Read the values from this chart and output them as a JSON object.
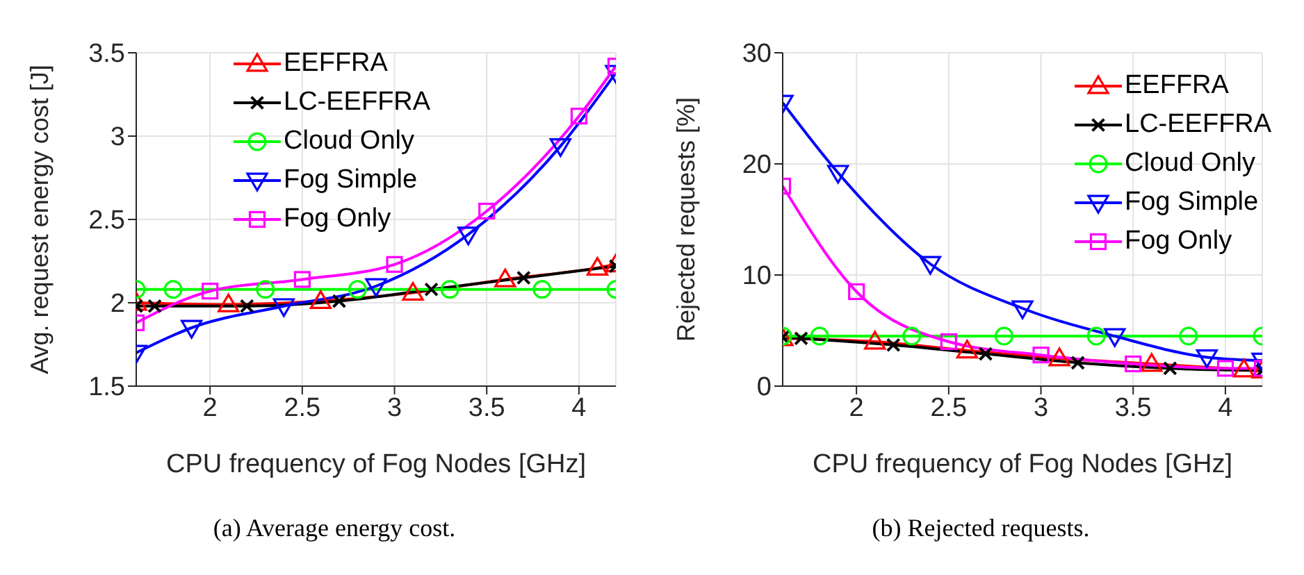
{
  "chart_data": [
    {
      "type": "line",
      "xlabel": "CPU frequency of Fog Nodes [GHz]",
      "ylabel": "Avg. request energy cost [J]",
      "xlim": [
        1.6,
        4.2
      ],
      "xticks": [
        2,
        2.5,
        3,
        3.5,
        4
      ],
      "ylim": [
        1.5,
        3.5
      ],
      "yticks": [
        1.5,
        2,
        2.5,
        3,
        3.5
      ],
      "grid": true,
      "legend": "top",
      "line_style": "solid",
      "annotations": [
        "(a) Average energy cost."
      ],
      "series": [
        {
          "name": "EEFFRA",
          "color": "#ff0000",
          "marker": "triangle",
          "x": [
            1.6,
            2.1,
            2.6,
            3.1,
            3.6,
            4.1,
            4.2
          ],
          "values": [
            2.0,
            1.99,
            2.01,
            2.06,
            2.14,
            2.21,
            2.23
          ]
        },
        {
          "name": "LC-EEFFRA",
          "color": "#000000",
          "marker": "cross",
          "x": [
            1.6,
            1.7,
            2.2,
            2.7,
            3.2,
            3.7,
            4.2
          ],
          "values": [
            1.98,
            1.98,
            1.98,
            2.01,
            2.08,
            2.15,
            2.22
          ]
        },
        {
          "name": "Cloud Only",
          "color": "#00ff00",
          "marker": "circle",
          "x": [
            1.6,
            1.8,
            2.3,
            2.8,
            3.3,
            3.8,
            4.2
          ],
          "values": [
            2.08,
            2.08,
            2.08,
            2.08,
            2.08,
            2.08,
            2.08
          ]
        },
        {
          "name": "Fog Simple",
          "color": "#0000ff",
          "marker": "triangle-down",
          "x": [
            1.6,
            1.9,
            2.4,
            2.9,
            3.4,
            3.9,
            4.2
          ],
          "values": [
            1.7,
            1.85,
            1.98,
            2.1,
            2.41,
            2.94,
            3.38
          ]
        },
        {
          "name": "Fog Only",
          "color": "#ff00ff",
          "marker": "square",
          "x": [
            1.6,
            2.0,
            2.5,
            3.0,
            3.5,
            4.0,
            4.2
          ],
          "values": [
            1.88,
            2.07,
            2.14,
            2.23,
            2.55,
            3.12,
            3.42
          ]
        }
      ]
    },
    {
      "type": "line",
      "xlabel": "CPU frequency of Fog Nodes [GHz]",
      "ylabel": "Rejected requests [%]",
      "xlim": [
        1.6,
        4.2
      ],
      "xticks": [
        2,
        2.5,
        3,
        3.5,
        4
      ],
      "ylim": [
        0,
        30
      ],
      "yticks": [
        0,
        10,
        20,
        30
      ],
      "grid": true,
      "legend": "top right",
      "line_style": "solid",
      "annotations": [
        "(b) Rejected requests."
      ],
      "series": [
        {
          "name": "EEFFRA",
          "color": "#ff0000",
          "marker": "triangle",
          "x": [
            1.6,
            2.1,
            2.6,
            3.1,
            3.6,
            4.1,
            4.2
          ],
          "values": [
            4.3,
            4.0,
            3.2,
            2.5,
            2.0,
            1.5,
            1.4
          ]
        },
        {
          "name": "LC-EEFFRA",
          "color": "#000000",
          "marker": "cross",
          "x": [
            1.6,
            1.7,
            2.2,
            2.7,
            3.2,
            3.7,
            4.2
          ],
          "values": [
            4.4,
            4.3,
            3.7,
            2.9,
            2.1,
            1.6,
            1.4
          ]
        },
        {
          "name": "Cloud Only",
          "color": "#00ff00",
          "marker": "circle",
          "x": [
            1.6,
            1.8,
            2.3,
            2.8,
            3.3,
            3.8,
            4.2
          ],
          "values": [
            4.5,
            4.5,
            4.5,
            4.5,
            4.5,
            4.5,
            4.5
          ]
        },
        {
          "name": "Fog Simple",
          "color": "#0000ff",
          "marker": "triangle-down",
          "x": [
            1.6,
            1.9,
            2.4,
            2.9,
            3.4,
            3.9,
            4.2
          ],
          "values": [
            25.5,
            19.2,
            11.0,
            7.0,
            4.5,
            2.6,
            2.3
          ]
        },
        {
          "name": "Fog Only",
          "color": "#ff00ff",
          "marker": "square",
          "x": [
            1.6,
            2.0,
            2.5,
            3.0,
            3.5,
            4.0,
            4.2
          ],
          "values": [
            18.0,
            8.5,
            4.0,
            2.8,
            2.0,
            1.6,
            1.6
          ]
        }
      ]
    }
  ]
}
